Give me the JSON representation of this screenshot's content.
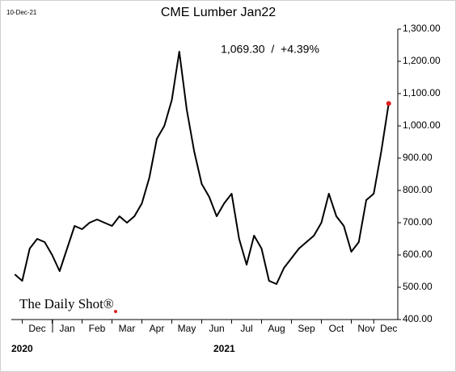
{
  "chart_data": {
    "type": "line",
    "title": "CME Lumber Jan22",
    "date": "10-Dec-21",
    "annotation": "1,069.30  /  +4.39%",
    "source": "The Daily Shot®",
    "years": [
      "2020",
      "2021"
    ],
    "categories": [
      null,
      null,
      null,
      "Dec",
      null,
      null,
      null,
      "Jan",
      null,
      null,
      null,
      "Feb",
      null,
      null,
      null,
      "Mar",
      null,
      null,
      null,
      "Apr",
      null,
      null,
      null,
      "May",
      null,
      null,
      null,
      "Jun",
      null,
      null,
      null,
      "Jul",
      null,
      null,
      null,
      "Aug",
      null,
      null,
      null,
      "Sep",
      null,
      null,
      null,
      "Oct",
      null,
      null,
      null,
      "Nov",
      null,
      null,
      "Dec"
    ],
    "series": [
      {
        "name": "CME Lumber Jan22",
        "color": "#000000",
        "values": [
          540,
          520,
          620,
          650,
          640,
          600,
          550,
          620,
          690,
          680,
          700,
          710,
          700,
          690,
          720,
          700,
          720,
          760,
          840,
          960,
          1000,
          1080,
          1230,
          1050,
          920,
          820,
          780,
          720,
          760,
          790,
          650,
          570,
          660,
          620,
          520,
          510,
          560,
          590,
          620,
          640,
          660,
          700,
          790,
          720,
          690,
          610,
          640,
          770,
          790,
          920,
          1069.3
        ]
      }
    ],
    "last_point_color": "#e02020",
    "ylim": [
      400,
      1300
    ],
    "yticks": [
      {
        "value": 400,
        "label": "400.00"
      },
      {
        "value": 500,
        "label": "500.00"
      },
      {
        "value": 600,
        "label": "600.00"
      },
      {
        "value": 700,
        "label": "700.00"
      },
      {
        "value": 800,
        "label": "800.00"
      },
      {
        "value": 900,
        "label": "900.00"
      },
      {
        "value": 1000,
        "label": "1,000.00"
      },
      {
        "value": 1100,
        "label": "1,100.00"
      },
      {
        "value": 1200,
        "label": "1,200.00"
      },
      {
        "value": 1300,
        "label": "1,300.00"
      }
    ]
  }
}
